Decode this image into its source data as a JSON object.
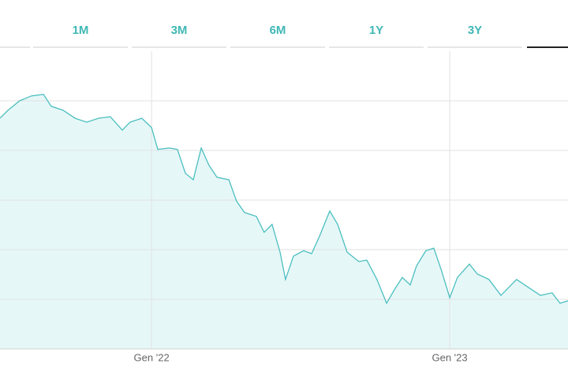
{
  "tabs": [
    "1M",
    "3M",
    "6M",
    "1Y",
    "3Y"
  ],
  "chart_data": {
    "type": "area",
    "x": [
      5.9,
      6.22,
      6.69,
      7.17,
      7.65,
      7.96,
      8.44,
      8.92,
      9.39,
      9.87,
      10.34,
      10.82,
      11.14,
      11.61,
      12,
      12.25,
      12.73,
      13.04,
      13.36,
      13.68,
      14.0,
      14.31,
      14.63,
      15.11,
      15.42,
      15.74,
      16.22,
      16.53,
      16.85,
      17.17,
      17.39,
      17.71,
      18.12,
      18.44,
      18.76,
      19.17,
      19.49,
      19.87,
      20.34,
      20.66,
      21.07,
      21.46,
      21.77,
      22.09,
      22.41,
      22.66,
      23.04,
      23.36,
      23.68,
      24,
      24.31,
      24.79,
      25.11,
      25.58,
      26.06,
      26.69,
      27.17,
      27.65,
      28.12,
      28.44,
      28.76
    ],
    "values": [
      4.65,
      4.81,
      5,
      5.1,
      5.13,
      4.89,
      4.81,
      4.65,
      4.57,
      4.65,
      4.68,
      4.41,
      4.57,
      4.65,
      4.46,
      4.02,
      4.05,
      4.02,
      3.54,
      3.41,
      4.05,
      3.7,
      3.46,
      3.41,
      2.98,
      2.75,
      2.67,
      2.35,
      2.51,
      1.95,
      1.4,
      1.87,
      1.98,
      1.92,
      2.27,
      2.78,
      2.51,
      1.95,
      1.76,
      1.79,
      1.4,
      0.92,
      1.19,
      1.44,
      1.29,
      1.67,
      1.98,
      2.03,
      1.56,
      1.03,
      1.44,
      1.71,
      1.51,
      1.4,
      1.08,
      1.4,
      1.24,
      1.08,
      1.13,
      0.92,
      0.97
    ],
    "color": "#4cbfbf",
    "fill": "#e6f7f8",
    "xlim": [
      5.9,
      28.76
    ],
    "xticks": [
      {
        "value": 12,
        "label": "Gen '22"
      },
      {
        "value": 24,
        "label": "Gen '23"
      }
    ],
    "ylim": [
      0,
      6
    ],
    "yticks": [
      1,
      2,
      3,
      4,
      5
    ],
    "grid": true
  }
}
